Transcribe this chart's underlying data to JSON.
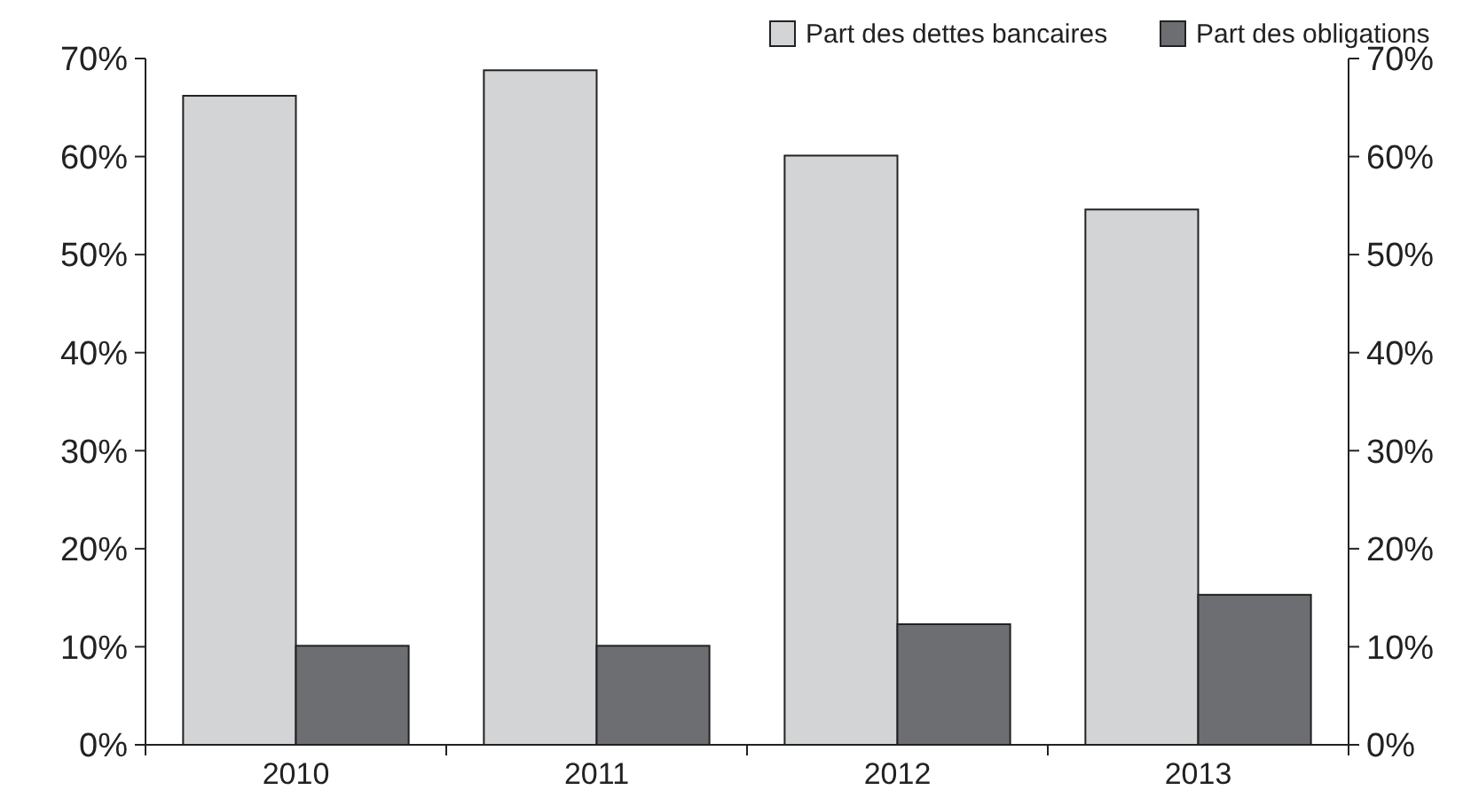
{
  "chart_data": {
    "type": "bar",
    "categories": [
      "2010",
      "2011",
      "2012",
      "2013"
    ],
    "series": [
      {
        "name": "Part des dettes bancaires",
        "color": "#d3d4d6",
        "values": [
          66.2,
          68.8,
          60.1,
          54.6
        ]
      },
      {
        "name": "Part des obligations",
        "color": "#6d6e71",
        "values": [
          10.1,
          10.1,
          12.3,
          15.3
        ]
      }
    ],
    "ylim": [
      0,
      70
    ],
    "yticks": [
      {
        "value": 0,
        "label": "0%"
      },
      {
        "value": 10,
        "label": "10%"
      },
      {
        "value": 20,
        "label": "20%"
      },
      {
        "value": 30,
        "label": "30%"
      },
      {
        "value": 40,
        "label": "40%"
      },
      {
        "value": 50,
        "label": "50%"
      },
      {
        "value": 60,
        "label": "60%"
      },
      {
        "value": 70,
        "label": "70%"
      }
    ],
    "y2lim": [
      0,
      70
    ],
    "y2ticks": [
      {
        "value": 0,
        "label": "0%"
      },
      {
        "value": 10,
        "label": "10%"
      },
      {
        "value": 20,
        "label": "20%"
      },
      {
        "value": 30,
        "label": "30%"
      },
      {
        "value": 40,
        "label": "40%"
      },
      {
        "value": 50,
        "label": "50%"
      },
      {
        "value": 60,
        "label": "60%"
      },
      {
        "value": 70,
        "label": "70%"
      }
    ],
    "grid": false,
    "legend": "top right"
  }
}
